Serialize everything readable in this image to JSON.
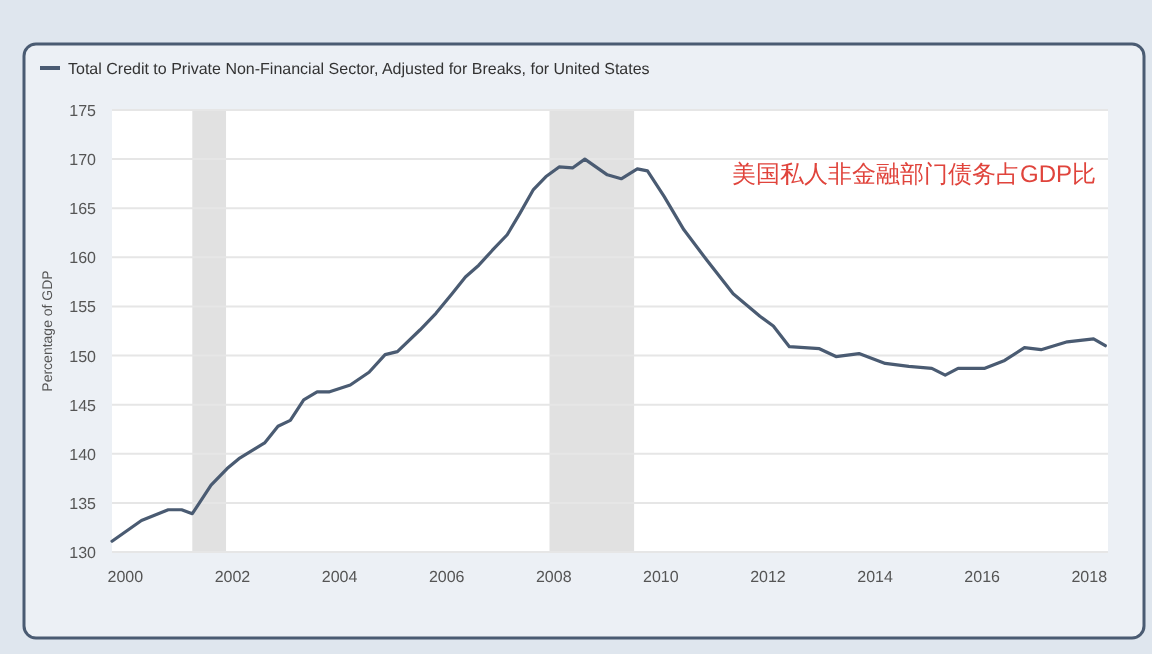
{
  "chart_data": {
    "type": "line",
    "ylabel": "Percentage of GDP",
    "annotations": [
      "美国私人非金融部门债务占GDP比"
    ],
    "x": [
      1999.75,
      2000.3,
      2000.8,
      2001.05,
      2001.25,
      2001.6,
      2001.9,
      2002.12,
      2002.6,
      2002.85,
      2003.08,
      2003.33,
      2003.58,
      2003.8,
      2004.2,
      2004.55,
      2004.85,
      2005.08,
      2005.5,
      2005.8,
      2006.1,
      2006.35,
      2006.6,
      2006.85,
      2007.13,
      2007.37,
      2007.62,
      2007.85,
      2008.1,
      2008.35,
      2008.58,
      2009.0,
      2009.26,
      2009.56,
      2009.75,
      2010.06,
      2010.43,
      2010.86,
      2011.35,
      2011.85,
      2012.1,
      2012.4,
      2012.96,
      2013.27,
      2013.7,
      2014.19,
      2014.63,
      2015.06,
      2015.31,
      2015.55,
      2016.05,
      2016.42,
      2016.79,
      2017.1,
      2017.59,
      2018.08,
      2018.3
    ],
    "series": [
      {
        "name": "Total Credit to Private Non-Financial Sector, Adjusted for Breaks, for United States",
        "color": "#4a5b72",
        "values": [
          131.1,
          133.2,
          134.3,
          134.3,
          133.9,
          136.8,
          138.5,
          139.5,
          141.1,
          142.8,
          143.4,
          145.5,
          146.3,
          146.3,
          147.0,
          148.3,
          150.1,
          150.4,
          152.6,
          154.3,
          156.3,
          158.0,
          159.2,
          160.7,
          162.3,
          164.5,
          166.9,
          168.2,
          169.2,
          169.1,
          170.0,
          168.4,
          168.0,
          169.0,
          168.8,
          166.2,
          162.8,
          159.7,
          156.3,
          154.0,
          153.0,
          150.9,
          150.7,
          149.9,
          150.2,
          149.2,
          148.9,
          148.7,
          148.0,
          148.7,
          148.7,
          149.5,
          150.8,
          150.6,
          151.4,
          151.7,
          151.0
        ]
      }
    ],
    "xlim": [
      1999.75,
      2018.35
    ],
    "xticks": [
      2000,
      2002,
      2004,
      2006,
      2008,
      2010,
      2012,
      2014,
      2016,
      2018
    ],
    "ylim": [
      130,
      175
    ],
    "yticks": [
      130,
      135,
      140,
      145,
      150,
      155,
      160,
      165,
      170,
      175
    ],
    "bands": [
      {
        "axis": "x",
        "from": 2001.25,
        "to": 2001.88,
        "color": "#e1e1e1"
      },
      {
        "axis": "x",
        "from": 2007.92,
        "to": 2009.5,
        "color": "#e1e1e1"
      }
    ],
    "grid": "y",
    "legend": "top left",
    "marker": "none",
    "line_style": "solid"
  }
}
